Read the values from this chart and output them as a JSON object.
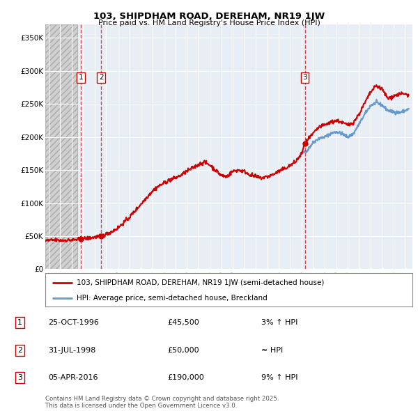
{
  "title": "103, SHIPDHAM ROAD, DEREHAM, NR19 1JW",
  "subtitle": "Price paid vs. HM Land Registry's House Price Index (HPI)",
  "ylabel_ticks": [
    "£0",
    "£50K",
    "£100K",
    "£150K",
    "£200K",
    "£250K",
    "£300K",
    "£350K"
  ],
  "ytick_values": [
    0,
    50000,
    100000,
    150000,
    200000,
    250000,
    300000,
    350000
  ],
  "ylim": [
    0,
    370000
  ],
  "xlim_start": 1993.7,
  "xlim_end": 2025.6,
  "background_color": "#ffffff",
  "plot_bg_color": "#e8eef5",
  "hatch_color": "#cccccc",
  "grid_color": "#ffffff",
  "sale_dates": [
    1996.82,
    1998.58,
    2016.27
  ],
  "sale_prices": [
    45500,
    50000,
    190000
  ],
  "sale_labels": [
    "1",
    "2",
    "3"
  ],
  "vline_color": "#cc0000",
  "legend_entries": [
    "103, SHIPDHAM ROAD, DEREHAM, NR19 1JW (semi-detached house)",
    "HPI: Average price, semi-detached house, Breckland"
  ],
  "legend_colors": [
    "#cc0000",
    "#6699cc"
  ],
  "table_rows": [
    [
      "1",
      "25-OCT-1996",
      "£45,500",
      "3% ↑ HPI"
    ],
    [
      "2",
      "31-JUL-1998",
      "£50,000",
      "≈ HPI"
    ],
    [
      "3",
      "05-APR-2016",
      "£190,000",
      "9% ↑ HPI"
    ]
  ],
  "footer_text": "Contains HM Land Registry data © Crown copyright and database right 2025.\nThis data is licensed under the Open Government Licence v3.0.",
  "hpi_line_color": "#6699cc",
  "price_line_color": "#cc0000",
  "hpi_start_year": 2016.0,
  "hatch_end_year": 1996.5
}
